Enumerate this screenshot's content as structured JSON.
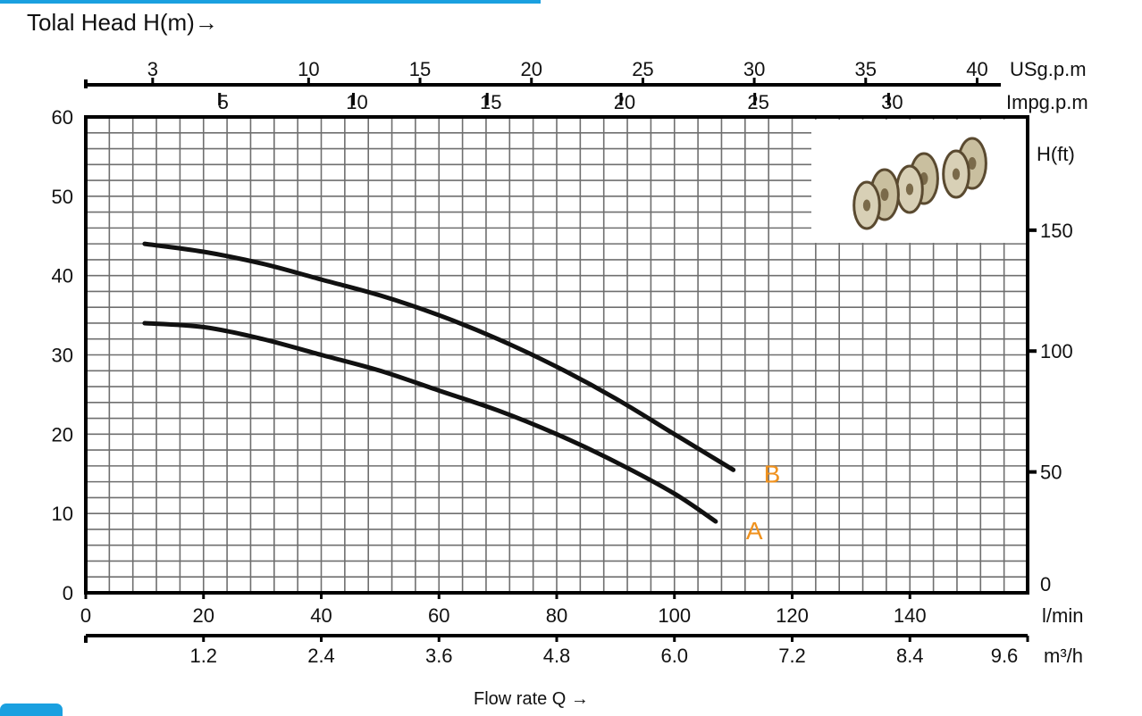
{
  "colors": {
    "accent": "#1aa0e0",
    "curve": "#111111",
    "curve_label": "#f0921e",
    "grid": "#6f6f6f",
    "axis": "#000000"
  },
  "chart_data": {
    "type": "line",
    "title": "Tolal Head H(m)→",
    "xlabel": "Flow rate Q  →",
    "x_unit": "l/min",
    "y_unit": "m",
    "xlim": [
      0,
      160
    ],
    "ylim": [
      0,
      60
    ],
    "x_ticks": [
      0,
      20,
      40,
      60,
      80,
      100,
      120,
      140
    ],
    "y_ticks": [
      0,
      10,
      20,
      30,
      40,
      50,
      60
    ],
    "grid": true,
    "secondary_axes": {
      "top_usgpm": {
        "unit": "USg.p.m",
        "ticks": [
          "3",
          "10",
          "15",
          "20",
          "25",
          "30",
          "35",
          "40"
        ],
        "values_lpm": [
          11.36,
          37.85,
          56.78,
          75.71,
          94.64,
          113.56,
          132.49,
          151.42
        ]
      },
      "top_impgpm": {
        "unit": "Impg.p.m",
        "ticks": [
          "5",
          "10",
          "15",
          "20",
          "25",
          "30"
        ],
        "values_lpm": [
          22.73,
          45.46,
          68.19,
          90.92,
          113.65,
          136.38
        ]
      },
      "right_ft": {
        "unit": "H(ft)",
        "ticks": [
          "0",
          "50",
          "100",
          "150"
        ],
        "values_m": [
          0,
          15.24,
          30.48,
          45.72
        ]
      },
      "bottom_m3h": {
        "unit": "m³/h",
        "ticks": [
          "1.2",
          "2.4",
          "3.6",
          "4.8",
          "6.0",
          "7.2",
          "8.4",
          "9.6"
        ],
        "values_lpm": [
          20,
          40,
          60,
          80,
          100,
          120,
          140,
          160
        ]
      }
    },
    "series": [
      {
        "name": "B",
        "x": [
          10,
          20,
          30,
          40,
          50,
          60,
          70,
          80,
          90,
          100,
          110
        ],
        "y": [
          44,
          43,
          41.5,
          39.5,
          37.5,
          35,
          32,
          28.5,
          24.5,
          20,
          15.5
        ]
      },
      {
        "name": "A",
        "x": [
          10,
          20,
          30,
          40,
          50,
          60,
          70,
          80,
          90,
          100,
          107
        ],
        "y": [
          34,
          33.5,
          32,
          30,
          28,
          25.5,
          23,
          20,
          16.5,
          12.5,
          9
        ]
      }
    ],
    "inset_image": "impeller-stages-photo"
  }
}
